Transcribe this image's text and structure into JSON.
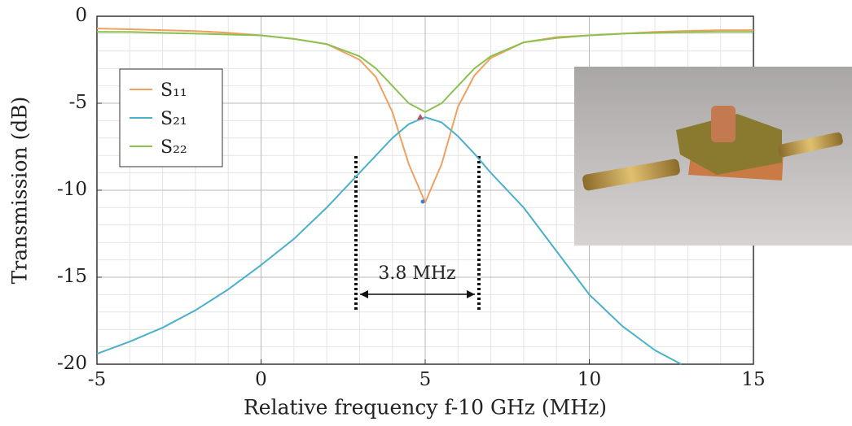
{
  "chart_data": {
    "type": "line",
    "xlabel": "Relative frequency f-10 GHz (MHz)",
    "ylabel": "Transmission (dB)",
    "x": [
      -5,
      -4,
      -3,
      -2,
      -1,
      0,
      1,
      2,
      3,
      3.5,
      4,
      4.5,
      5,
      5.5,
      6,
      6.5,
      7,
      8,
      9,
      10,
      11,
      12,
      12.8,
      14,
      15
    ],
    "series": [
      {
        "name": "S₁₁",
        "color": "#f0a060",
        "values": [
          -0.7,
          -0.75,
          -0.8,
          -0.85,
          -0.95,
          -1.1,
          -1.3,
          -1.6,
          -2.5,
          -3.5,
          -5.5,
          -8.5,
          -10.7,
          -8.5,
          -5.2,
          -3.4,
          -2.4,
          -1.5,
          -1.2,
          -1.1,
          -1,
          -0.9,
          -0.85,
          -0.8,
          -0.8
        ]
      },
      {
        "name": "S₂₁",
        "color": "#4ab0cc",
        "values": [
          -19.4,
          -18.7,
          -17.9,
          -16.9,
          -15.7,
          -14.3,
          -12.8,
          -11,
          -9,
          -8,
          -7,
          -6.2,
          -5.8,
          -6.1,
          -6.9,
          -7.9,
          -9,
          -11,
          -13.5,
          -16,
          -17.8,
          -19.2,
          -20,
          null,
          null
        ]
      },
      {
        "name": "S₂₂",
        "color": "#8cc050",
        "values": [
          -0.9,
          -0.9,
          -0.95,
          -1,
          -1.05,
          -1.1,
          -1.3,
          -1.6,
          -2.3,
          -3,
          -4,
          -5,
          -5.5,
          -5,
          -4,
          -3,
          -2.3,
          -1.5,
          -1.25,
          -1.1,
          -1,
          -0.95,
          -0.92,
          -0.9,
          -0.9
        ]
      }
    ],
    "xlim": [
      -5,
      15
    ],
    "xticks": [
      -5,
      0,
      5,
      10,
      15
    ],
    "ylim": [
      -20,
      0
    ],
    "yticks": [
      -20,
      -15,
      -10,
      -5,
      0
    ],
    "grid": true,
    "legend": "upper left",
    "annotation": "3.8 MHz"
  }
}
